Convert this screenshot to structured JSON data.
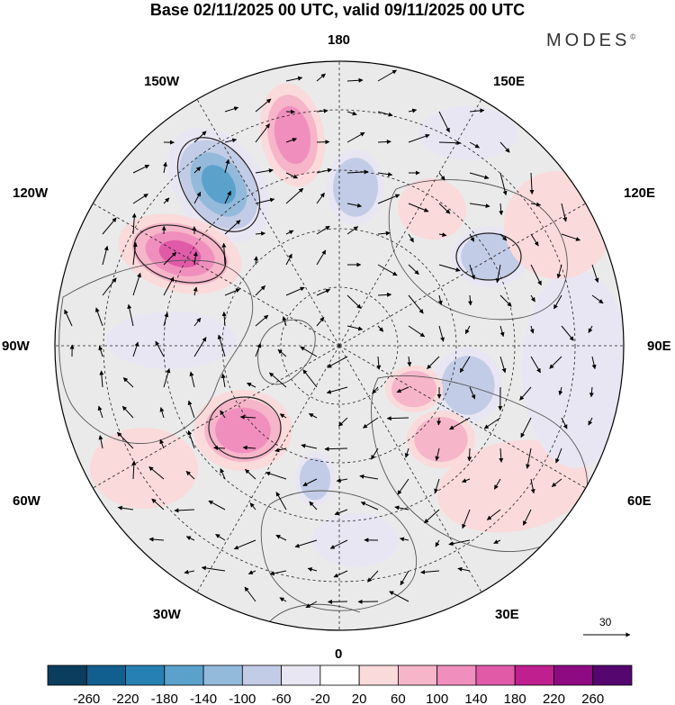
{
  "title": "Base 02/11/2025 00 UTC, valid 09/11/2025 00 UTC",
  "brand": "MODES",
  "brand_mark": "©",
  "longitude_labels": {
    "top": "180",
    "upper_left": "150W",
    "upper_right": "150E",
    "left_upper": "120W",
    "right_upper": "120E",
    "left": "90W",
    "right": "90E",
    "left_lower": "60W",
    "right_lower": "60E",
    "lower_left": "30W",
    "lower_right": "30E",
    "bottom": "0"
  },
  "reference_vector": "30",
  "colorbar": {
    "ticks": [
      "-260",
      "-220",
      "-180",
      "-140",
      "-100",
      "-60",
      "-20",
      "20",
      "60",
      "100",
      "140",
      "180",
      "220",
      "260"
    ],
    "colors": [
      "#0b3d5e",
      "#115f8f",
      "#2680b4",
      "#5aa2cc",
      "#93badb",
      "#c3cce6",
      "#e8e6f3",
      "#ffffff",
      "#fadada",
      "#f6b5c9",
      "#f08fbd",
      "#e05aa8",
      "#bf1f8f",
      "#8d0a82",
      "#55066f"
    ]
  },
  "anomalies": [
    {
      "sign": "neg",
      "level": 4
    },
    {
      "sign": "pos",
      "level": 4
    },
    {
      "sign": "pos",
      "level": 3
    },
    {
      "sign": "neg",
      "level": 2
    },
    {
      "sign": "pos",
      "level": 3
    },
    {
      "sign": "neg",
      "level": 2
    },
    {
      "sign": "neg",
      "level": 1
    },
    {
      "sign": "pos",
      "level": 1
    },
    {
      "sign": "neg",
      "level": 2
    },
    {
      "sign": "pos",
      "level": 2
    },
    {
      "sign": "neg",
      "level": 2
    },
    {
      "sign": "pos",
      "level": 2
    },
    {
      "sign": "neg",
      "level": 1
    },
    {
      "sign": "pos",
      "level": 1
    },
    {
      "sign": "neg",
      "level": 1
    },
    {
      "sign": "pos",
      "level": 1
    },
    {
      "sign": "neg",
      "level": 1
    },
    {
      "sign": "pos",
      "level": 1
    }
  ]
}
